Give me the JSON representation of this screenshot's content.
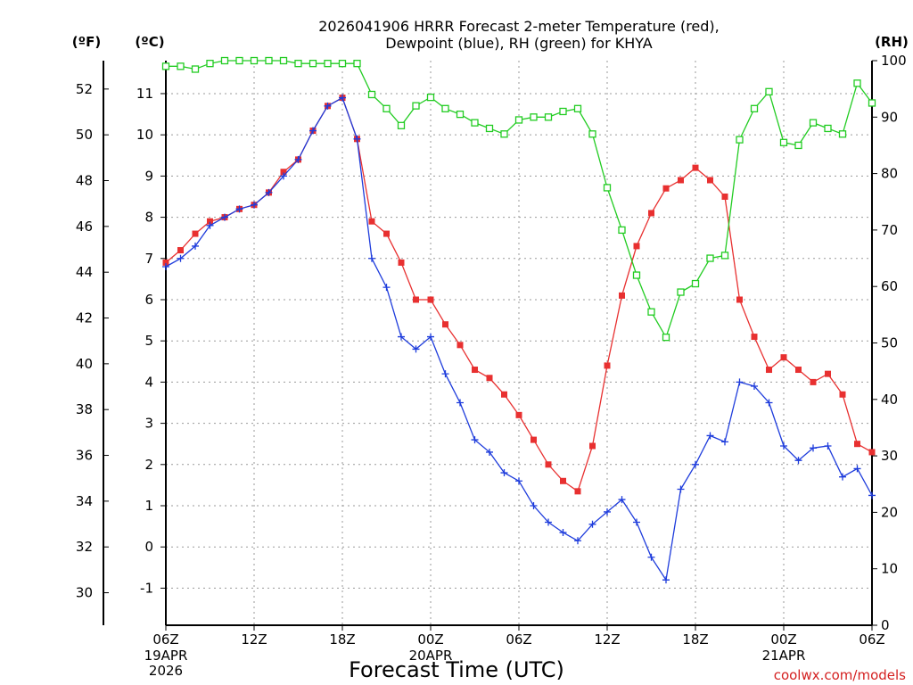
{
  "chart_data": {
    "type": "line",
    "title_line1": "2026041906 HRRR Forecast 2-meter Temperature (red),",
    "title_line2": "Dewpoint (blue), RH (green) for KHYA",
    "xlabel": "Forecast Time (UTC)",
    "watermark": "coolwx.com/models",
    "units": {
      "fahrenheit": "(ºF)",
      "celsius": "(ºC)",
      "rh": "(RH)"
    },
    "x_hours": [
      0,
      1,
      2,
      3,
      4,
      5,
      6,
      7,
      8,
      9,
      10,
      11,
      12,
      13,
      14,
      15,
      16,
      17,
      18,
      19,
      20,
      21,
      22,
      23,
      24,
      25,
      26,
      27,
      28,
      29,
      30,
      31,
      32,
      33,
      34,
      35,
      36,
      37,
      38,
      39,
      40,
      41,
      42,
      43,
      44,
      45,
      46,
      47,
      48
    ],
    "x_range": [
      0,
      48
    ],
    "x_ticks": [
      {
        "hour": 0,
        "label": "06Z",
        "label2": "19APR",
        "label3": "2026"
      },
      {
        "hour": 6,
        "label": "12Z"
      },
      {
        "hour": 12,
        "label": "18Z"
      },
      {
        "hour": 18,
        "label": "00Z",
        "label2": "20APR"
      },
      {
        "hour": 24,
        "label": "06Z"
      },
      {
        "hour": 30,
        "label": "12Z"
      },
      {
        "hour": 36,
        "label": "18Z"
      },
      {
        "hour": 42,
        "label": "00Z",
        "label2": "21APR"
      },
      {
        "hour": 48,
        "label": "06Z"
      }
    ],
    "celsius_range": [
      -1.9,
      11.8
    ],
    "celsius_ticks": [
      "-1",
      "0",
      "1",
      "2",
      "3",
      "4",
      "5",
      "6",
      "7",
      "8",
      "9",
      "10",
      "11"
    ],
    "fahrenheit_ticks": [
      "30",
      "32",
      "34",
      "36",
      "38",
      "40",
      "42",
      "44",
      "46",
      "48",
      "50",
      "52"
    ],
    "rh_range": [
      0,
      100
    ],
    "rh_ticks": [
      "0",
      "10",
      "20",
      "30",
      "40",
      "50",
      "60",
      "70",
      "80",
      "90",
      "100"
    ],
    "series": [
      {
        "name": "Temperature",
        "unit": "C",
        "color": "#e83030",
        "marker": "filled-square",
        "values": [
          6.9,
          7.2,
          7.6,
          7.9,
          8.0,
          8.2,
          8.3,
          8.6,
          9.1,
          9.4,
          10.1,
          10.7,
          10.9,
          9.9,
          7.9,
          7.6,
          6.9,
          6.0,
          6.0,
          5.4,
          4.9,
          4.3,
          4.1,
          3.7,
          3.2,
          2.6,
          2.0,
          1.6,
          1.35,
          2.45,
          4.4,
          6.1,
          7.3,
          8.1,
          8.7,
          8.9,
          9.2,
          8.9,
          8.5,
          6.0,
          5.1,
          4.3,
          4.6,
          4.3,
          4.0,
          4.2,
          3.7,
          2.5,
          2.3
        ]
      },
      {
        "name": "Dewpoint",
        "unit": "C",
        "color": "#1e3cdc",
        "marker": "plus",
        "values": [
          6.8,
          7.0,
          7.3,
          7.8,
          8.0,
          8.2,
          8.3,
          8.6,
          9.0,
          9.4,
          10.1,
          10.7,
          10.9,
          9.9,
          7.0,
          6.3,
          5.1,
          4.8,
          5.1,
          4.2,
          3.5,
          2.6,
          2.3,
          1.8,
          1.6,
          1.0,
          0.6,
          0.35,
          0.15,
          0.55,
          0.85,
          1.15,
          0.6,
          -0.25,
          -0.8,
          1.4,
          2.0,
          2.7,
          2.55,
          4.0,
          3.9,
          3.5,
          2.45,
          2.1,
          2.4,
          2.45,
          1.7,
          1.9,
          1.25
        ]
      },
      {
        "name": "RH",
        "unit": "%",
        "color": "#22cc22",
        "marker": "open-square",
        "values": [
          99,
          99,
          98.5,
          99.5,
          100,
          100,
          100,
          100,
          100,
          99.5,
          99.5,
          99.5,
          99.5,
          99.5,
          94,
          91.5,
          88.5,
          92,
          93.5,
          91.5,
          90.5,
          89,
          88,
          87,
          89.5,
          90,
          90,
          91,
          91.5,
          87,
          77.5,
          70,
          62,
          55.5,
          51,
          59,
          60.5,
          65,
          65.5,
          86,
          91.5,
          94.5,
          85.5,
          85,
          89,
          88,
          87,
          96,
          92.5
        ]
      }
    ]
  }
}
